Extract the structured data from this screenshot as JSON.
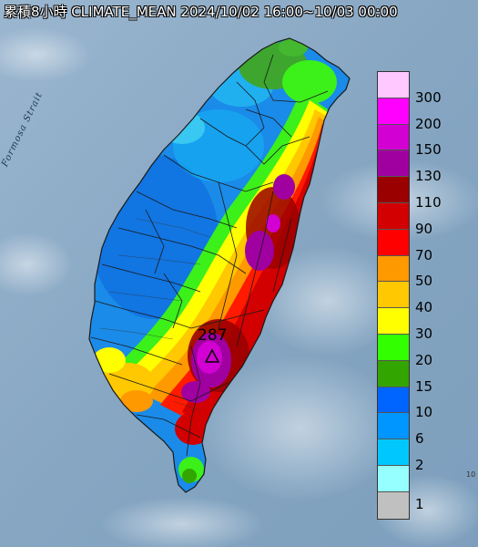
{
  "title": "累積8小時 CLIMATE_MEAN 2024/10/02 16:00~10/03 00:00",
  "sea_label": "Formosa Strait",
  "max_marker": {
    "value": "287",
    "icon": "triangle-marker-icon"
  },
  "corner_text": "10",
  "legend": {
    "labels": [
      "300",
      "200",
      "150",
      "130",
      "110",
      "90",
      "70",
      "50",
      "40",
      "30",
      "20",
      "15",
      "10",
      "6",
      "2",
      "1"
    ],
    "colors": [
      "#ffc8ff",
      "#ff00ff",
      "#d200d2",
      "#a000a0",
      "#9b0000",
      "#d20000",
      "#ff0000",
      "#ff9900",
      "#ffc800",
      "#ffff00",
      "#32ff00",
      "#33a500",
      "#0064ff",
      "#0096ff",
      "#00c8ff",
      "#96ffff",
      "#c0c0c0"
    ]
  },
  "colors": {
    "sea": "#8aa9c4",
    "land": "#b9c2c9"
  }
}
